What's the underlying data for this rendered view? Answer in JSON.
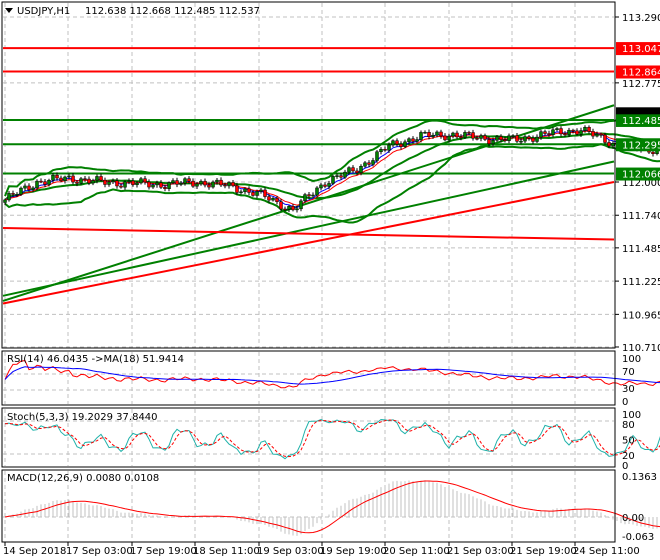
{
  "header": {
    "symbol": "USDJPY,H1",
    "ohlc": "112.638 112.668 112.485 112.537"
  },
  "colors": {
    "bull": "#008000",
    "bear": "#ff0000",
    "level_red": "#ff0000",
    "level_green": "#008000",
    "bb": "#008000",
    "rsi": "#ff0000",
    "rsi_ma": "#0000ff",
    "stoch_main": "#20b2aa",
    "stoch_signal": "#ff0000",
    "macd_hist": "#c0c0c0",
    "macd_signal": "#ff0000"
  },
  "chart_data": {
    "type": "candlestick",
    "title": "USDJPY,H1",
    "ylim": [
      110.71,
      113.29
    ],
    "y_ticks": [
      "113.290",
      "112.775",
      "112.000",
      "111.740",
      "111.485",
      "111.225",
      "110.965",
      "110.710"
    ],
    "x_ticks": [
      "14 Sep 2018",
      "17 Sep 03:00",
      "17 Sep 19:00",
      "18 Sep 11:00",
      "19 Sep 03:00",
      "19 Sep 19:00",
      "20 Sep 11:00",
      "21 Sep 03:00",
      "21 Sep 19:00",
      "24 Sep 11:00"
    ],
    "approx_close_every_8_bars": [
      111.86,
      112.0,
      112.03,
      112.0,
      111.99,
      111.98,
      112.0,
      111.97,
      111.9,
      111.78,
      112.0,
      112.1,
      112.28,
      112.36,
      112.37,
      112.34,
      112.33,
      112.38,
      112.41,
      112.3,
      112.25,
      112.28,
      112.22,
      112.17,
      112.2,
      112.16,
      112.47,
      112.44,
      112.49,
      112.66,
      112.8,
      112.72,
      112.63,
      112.6,
      112.61,
      112.62,
      112.65,
      112.56
    ],
    "last_price": "112.537",
    "levels": [
      {
        "price": "113.047",
        "color": "#ff0000"
      },
      {
        "price": "112.864",
        "color": "#ff0000"
      },
      {
        "price": "112.485",
        "color": "#008000"
      },
      {
        "price": "112.295",
        "color": "#008000"
      },
      {
        "price": "112.066",
        "color": "#008000"
      }
    ],
    "trendlines": [
      {
        "from": 111.07,
        "to": 112.6,
        "color": "#008000"
      },
      {
        "from": 111.11,
        "to": 112.16,
        "color": "#008000"
      },
      {
        "from": 111.05,
        "to": 112.0,
        "color": "#ff0000"
      },
      {
        "from": 111.64,
        "to": 111.55,
        "color": "#ff0000"
      }
    ],
    "indicators": {
      "rsi": {
        "label": "RSI(14) 46.0435  ->MA(18) 51.9414",
        "ticks": [
          "100",
          "70",
          "30",
          "0"
        ]
      },
      "stoch": {
        "label": "Stoch(5,3,3) 19.2029 37.8440",
        "ticks": [
          "100",
          "80",
          "50",
          "20",
          "0"
        ]
      },
      "macd": {
        "label": "MACD(12,26,9) 0.0080 0.0108",
        "ticks": [
          "0.1363",
          "0.00",
          "-0.063"
        ]
      }
    }
  }
}
